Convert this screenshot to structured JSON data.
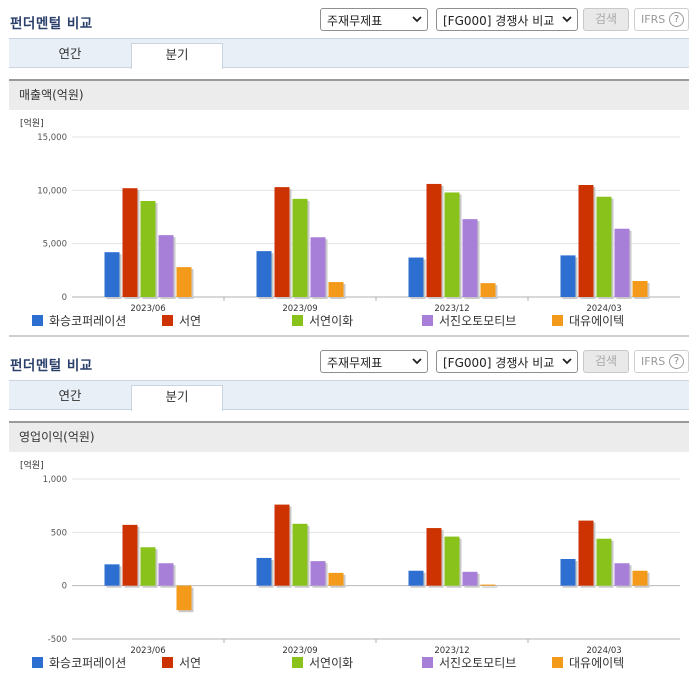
{
  "panels": [
    {
      "title": "펀더멘털 비교",
      "select1": "주재무제표",
      "select2": "[FG000] 경쟁사 비교",
      "search_label": "검색",
      "ifrs_label": "IFRS",
      "ifrs_help": "?",
      "tabs": [
        "연간",
        "분기"
      ],
      "active_tab": "분기",
      "metric_title": "매출액(억원)",
      "chart_data": {
        "type": "bar",
        "unit_label": "[억원]",
        "categories": [
          "2023/06",
          "2023/09",
          "2023/12",
          "2024/03"
        ],
        "ylim": [
          0,
          15000
        ],
        "yticks": [
          0,
          5000,
          10000,
          15000
        ],
        "ytick_labels": [
          "0",
          "5,000",
          "10,000",
          "15,000"
        ],
        "grid": true,
        "legend_position": "bottom",
        "series": [
          {
            "name": "화승코퍼레이션",
            "color": "#2c6fd1",
            "values": [
              4200,
              4300,
              3700,
              3900
            ]
          },
          {
            "name": "서연",
            "color": "#cc3300",
            "values": [
              10200,
              10300,
              10600,
              10500
            ]
          },
          {
            "name": "서연이화",
            "color": "#88c21a",
            "values": [
              9000,
              9200,
              9800,
              9400
            ]
          },
          {
            "name": "서진오토모티브",
            "color": "#a77ed8",
            "values": [
              5800,
              5600,
              7300,
              6400
            ]
          },
          {
            "name": "대유에이텍",
            "color": "#f39a1a",
            "values": [
              2800,
              1400,
              1300,
              1500
            ]
          }
        ]
      }
    },
    {
      "title": "펀더멘털 비교",
      "select1": "주재무제표",
      "select2": "[FG000] 경쟁사 비교",
      "search_label": "검색",
      "ifrs_label": "IFRS",
      "ifrs_help": "?",
      "tabs": [
        "연간",
        "분기"
      ],
      "active_tab": "분기",
      "metric_title": "영업이익(억원)",
      "chart_data": {
        "type": "bar",
        "unit_label": "[억원]",
        "categories": [
          "2023/06",
          "2023/09",
          "2023/12",
          "2024/03"
        ],
        "ylim": [
          -500,
          1000
        ],
        "yticks": [
          -500,
          0,
          500,
          1000
        ],
        "ytick_labels": [
          "-500",
          "0",
          "500",
          "1,000"
        ],
        "grid": true,
        "legend_position": "bottom",
        "series": [
          {
            "name": "화승코퍼레이션",
            "color": "#2c6fd1",
            "values": [
              200,
              260,
              140,
              250
            ]
          },
          {
            "name": "서연",
            "color": "#cc3300",
            "values": [
              570,
              760,
              540,
              610
            ]
          },
          {
            "name": "서연이화",
            "color": "#88c21a",
            "values": [
              360,
              580,
              460,
              440
            ]
          },
          {
            "name": "서진오토모티브",
            "color": "#a77ed8",
            "values": [
              210,
              230,
              130,
              210
            ]
          },
          {
            "name": "대유에이텍",
            "color": "#f39a1a",
            "values": [
              -230,
              120,
              10,
              140
            ]
          }
        ]
      }
    }
  ]
}
